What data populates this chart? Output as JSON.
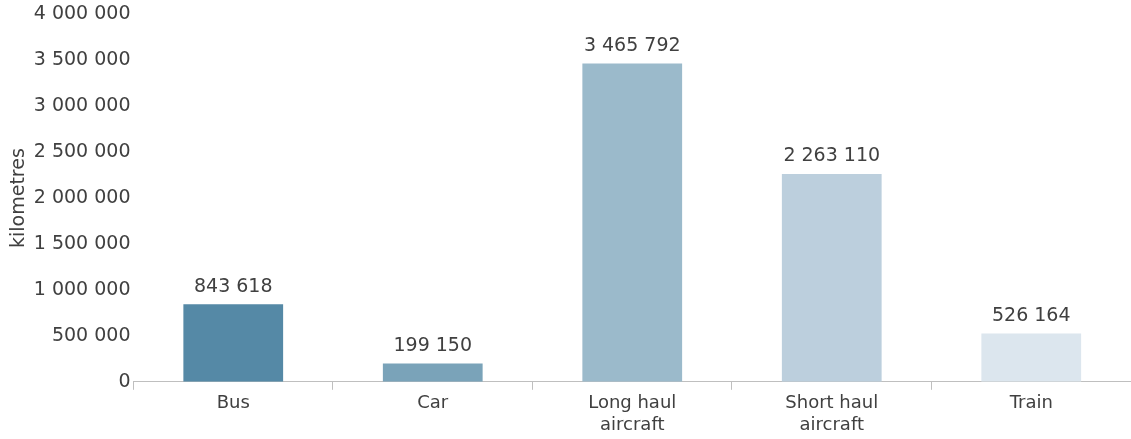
{
  "chart_data": {
    "type": "bar",
    "ylabel": "kilometres",
    "categories": [
      "Bus",
      "Car",
      "Long haul aircraft",
      "Short haul aircraft",
      "Train"
    ],
    "values": [
      843618,
      199150,
      3465792,
      2263110,
      526164
    ],
    "colors": [
      "#5589a6",
      "#7aa3b9",
      "#9bbacb",
      "#bccfdd",
      "#dce6ee"
    ],
    "ylim": [
      0,
      4000000
    ],
    "yticks": [
      0,
      500000,
      1000000,
      1500000,
      2000000,
      2500000,
      3000000,
      3500000,
      4000000
    ],
    "grid": false,
    "legend": false,
    "data_labels": true
  }
}
